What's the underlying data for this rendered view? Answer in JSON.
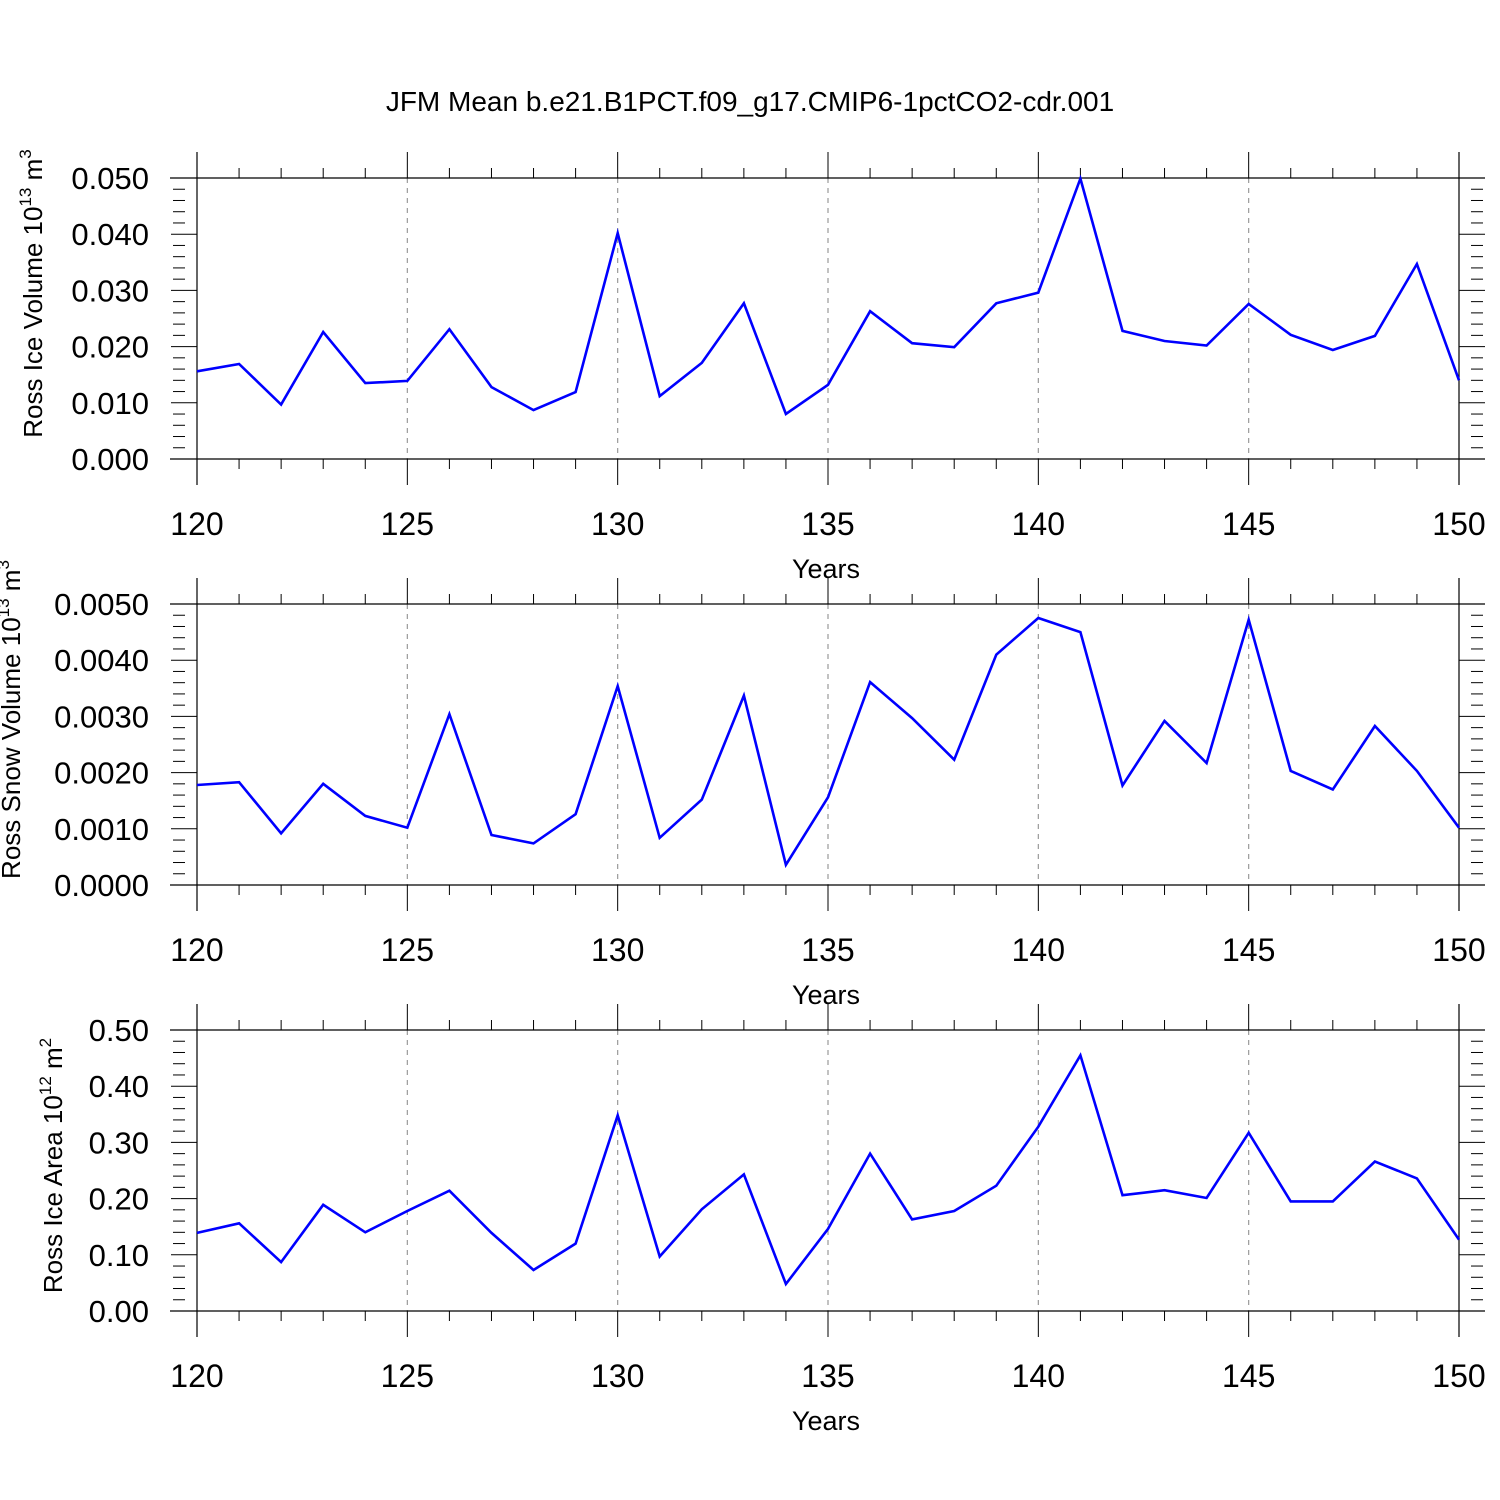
{
  "title": "JFM Mean b.e21.B1PCT.f09_g17.CMIP6-1pctCO2-cdr.001",
  "colors": {
    "line": "#0000ff",
    "axes": "#000000",
    "grid": "#999999"
  },
  "chart_data": [
    {
      "type": "line",
      "title": "",
      "xlabel": "Years",
      "ylabel": "Ross Ice Volume 10",
      "ylabel_sup": "13",
      "ylabel_unit": "m",
      "ylabel_unit_sup": "3",
      "xlim": [
        120,
        150
      ],
      "ylim": [
        0,
        0.05
      ],
      "xticks": [
        120,
        125,
        130,
        135,
        140,
        145,
        150
      ],
      "yticks": [
        0,
        0.01,
        0.02,
        0.03,
        0.04,
        0.05
      ],
      "ytick_labels": [
        "0.000",
        "0.010",
        "0.020",
        "0.030",
        "0.040",
        "0.050"
      ],
      "grid": "vertical dashed at major x ticks",
      "x": [
        120,
        121,
        122,
        123,
        124,
        125,
        126,
        127,
        128,
        129,
        130,
        131,
        132,
        133,
        134,
        135,
        136,
        137,
        138,
        139,
        140,
        141,
        142,
        143,
        144,
        145,
        146,
        147,
        148,
        149,
        150
      ],
      "series": [
        {
          "values": [
            0.0156,
            0.0169,
            0.0097,
            0.0226,
            0.0135,
            0.0139,
            0.0231,
            0.0128,
            0.0087,
            0.0119,
            0.0402,
            0.0112,
            0.0171,
            0.0277,
            0.008,
            0.0132,
            0.0263,
            0.0206,
            0.0199,
            0.0277,
            0.0296,
            0.0499,
            0.0228,
            0.021,
            0.0202,
            0.0276,
            0.0221,
            0.0194,
            0.0219,
            0.0347,
            0.014
          ]
        }
      ]
    },
    {
      "type": "line",
      "title": "",
      "xlabel": "Years",
      "ylabel": "Ross Snow Volume 10",
      "ylabel_sup": "13",
      "ylabel_unit": "m",
      "ylabel_unit_sup": "3",
      "xlim": [
        120,
        150
      ],
      "ylim": [
        0,
        0.005
      ],
      "xticks": [
        120,
        125,
        130,
        135,
        140,
        145,
        150
      ],
      "yticks": [
        0,
        0.001,
        0.002,
        0.003,
        0.004,
        0.005
      ],
      "ytick_labels": [
        "0.0000",
        "0.0010",
        "0.0020",
        "0.0030",
        "0.0040",
        "0.0050"
      ],
      "grid": "vertical dashed at major x ticks",
      "x": [
        120,
        121,
        122,
        123,
        124,
        125,
        126,
        127,
        128,
        129,
        130,
        131,
        132,
        133,
        134,
        135,
        136,
        137,
        138,
        139,
        140,
        141,
        142,
        143,
        144,
        145,
        146,
        147,
        148,
        149,
        150
      ],
      "series": [
        {
          "values": [
            0.00178,
            0.00183,
            0.00092,
            0.0018,
            0.00123,
            0.00102,
            0.00304,
            0.00089,
            0.00074,
            0.00126,
            0.00354,
            0.00084,
            0.00152,
            0.00337,
            0.00036,
            0.00156,
            0.00361,
            0.00297,
            0.00223,
            0.0041,
            0.00475,
            0.0045,
            0.00177,
            0.00292,
            0.00217,
            0.00472,
            0.00203,
            0.0017,
            0.00283,
            0.00203,
            0.00102
          ]
        }
      ]
    },
    {
      "type": "line",
      "title": "",
      "xlabel": "Years",
      "ylabel": "Ross Ice Area 10",
      "ylabel_sup": "12",
      "ylabel_unit": "m",
      "ylabel_unit_sup": "2",
      "xlim": [
        120,
        150
      ],
      "ylim": [
        0,
        0.5
      ],
      "xticks": [
        120,
        125,
        130,
        135,
        140,
        145,
        150
      ],
      "yticks": [
        0,
        0.1,
        0.2,
        0.3,
        0.4,
        0.5
      ],
      "ytick_labels": [
        "0.00",
        "0.10",
        "0.20",
        "0.30",
        "0.40",
        "0.50"
      ],
      "grid": "vertical dashed at major x ticks",
      "x": [
        120,
        121,
        122,
        123,
        124,
        125,
        126,
        127,
        128,
        129,
        130,
        131,
        132,
        133,
        134,
        135,
        136,
        137,
        138,
        139,
        140,
        141,
        142,
        143,
        144,
        145,
        146,
        147,
        148,
        149,
        150
      ],
      "series": [
        {
          "values": [
            0.139,
            0.156,
            0.087,
            0.189,
            0.14,
            0.178,
            0.214,
            0.139,
            0.073,
            0.12,
            0.348,
            0.097,
            0.181,
            0.243,
            0.048,
            0.146,
            0.28,
            0.163,
            0.178,
            0.223,
            0.328,
            0.455,
            0.206,
            0.215,
            0.201,
            0.317,
            0.195,
            0.195,
            0.266,
            0.236,
            0.127
          ]
        }
      ]
    }
  ]
}
